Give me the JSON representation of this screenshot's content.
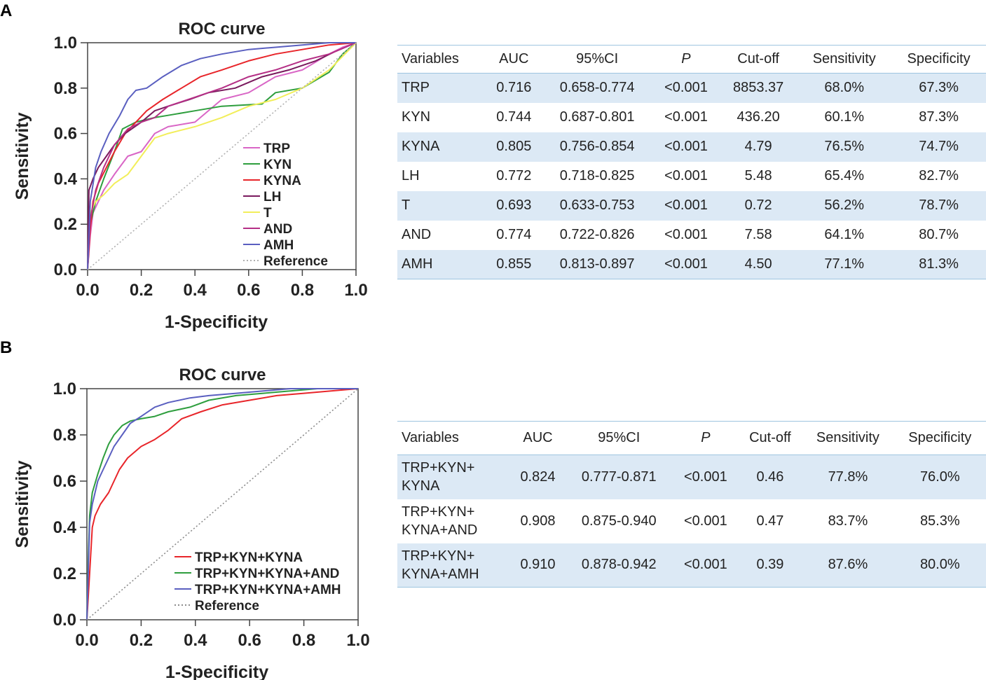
{
  "panels": {
    "A": {
      "label": "A",
      "chart_data": {
        "type": "line",
        "title": "ROC curve",
        "xlabel": "1-Specificity",
        "ylabel": "Sensitivity",
        "xlim": [
          0,
          1
        ],
        "ylim": [
          0,
          1
        ],
        "xticks": [
          "0.0",
          "0.2",
          "0.4",
          "0.6",
          "0.8",
          "1.0"
        ],
        "yticks": [
          "0.0",
          "0.2",
          "0.4",
          "0.6",
          "0.8",
          "1.0"
        ],
        "legend_position": "bottom-right",
        "series": [
          {
            "name": "TRP",
            "color": "#d966c6",
            "x": [
              0.0,
              0.01,
              0.02,
              0.04,
              0.06,
              0.1,
              0.15,
              0.2,
              0.25,
              0.3,
              0.4,
              0.5,
              0.6,
              0.7,
              0.8,
              0.9,
              0.95,
              1.0
            ],
            "y": [
              0.0,
              0.15,
              0.25,
              0.3,
              0.35,
              0.42,
              0.5,
              0.52,
              0.6,
              0.63,
              0.65,
              0.75,
              0.78,
              0.85,
              0.88,
              0.95,
              0.98,
              1.0
            ]
          },
          {
            "name": "KYN",
            "color": "#2e9e3e",
            "x": [
              0.0,
              0.01,
              0.03,
              0.06,
              0.1,
              0.13,
              0.18,
              0.25,
              0.3,
              0.4,
              0.5,
              0.65,
              0.7,
              0.8,
              0.9,
              0.95,
              1.0
            ],
            "y": [
              0.0,
              0.2,
              0.3,
              0.4,
              0.52,
              0.62,
              0.65,
              0.67,
              0.68,
              0.7,
              0.72,
              0.73,
              0.78,
              0.8,
              0.87,
              0.95,
              1.0
            ]
          },
          {
            "name": "KYNA",
            "color": "#e8252a",
            "x": [
              0.0,
              0.01,
              0.02,
              0.04,
              0.07,
              0.1,
              0.14,
              0.18,
              0.22,
              0.28,
              0.35,
              0.42,
              0.5,
              0.6,
              0.7,
              0.8,
              0.9,
              1.0
            ],
            "y": [
              0.0,
              0.18,
              0.3,
              0.38,
              0.45,
              0.52,
              0.6,
              0.65,
              0.7,
              0.75,
              0.8,
              0.85,
              0.88,
              0.92,
              0.95,
              0.97,
              0.99,
              1.0
            ]
          },
          {
            "name": "LH",
            "color": "#7a1a5e",
            "x": [
              0.0,
              0.005,
              0.02,
              0.04,
              0.07,
              0.1,
              0.14,
              0.2,
              0.25,
              0.3,
              0.38,
              0.45,
              0.55,
              0.65,
              0.75,
              0.85,
              0.92,
              1.0
            ],
            "y": [
              0.0,
              0.35,
              0.4,
              0.45,
              0.5,
              0.55,
              0.6,
              0.65,
              0.7,
              0.72,
              0.75,
              0.78,
              0.8,
              0.85,
              0.88,
              0.92,
              0.96,
              1.0
            ]
          },
          {
            "name": "T",
            "color": "#f2ee5a",
            "x": [
              0.0,
              0.01,
              0.03,
              0.06,
              0.1,
              0.15,
              0.2,
              0.25,
              0.3,
              0.4,
              0.5,
              0.6,
              0.7,
              0.8,
              0.9,
              1.0
            ],
            "y": [
              0.0,
              0.25,
              0.3,
              0.33,
              0.38,
              0.42,
              0.5,
              0.58,
              0.6,
              0.63,
              0.67,
              0.72,
              0.75,
              0.8,
              0.88,
              1.0
            ]
          },
          {
            "name": "AND",
            "color": "#b52f86",
            "x": [
              0.0,
              0.01,
              0.03,
              0.06,
              0.1,
              0.15,
              0.2,
              0.25,
              0.3,
              0.4,
              0.5,
              0.6,
              0.7,
              0.8,
              0.9,
              1.0
            ],
            "y": [
              0.0,
              0.22,
              0.35,
              0.45,
              0.55,
              0.62,
              0.65,
              0.67,
              0.72,
              0.76,
              0.8,
              0.85,
              0.88,
              0.92,
              0.95,
              1.0
            ]
          },
          {
            "name": "AMH",
            "color": "#5a5fc0",
            "x": [
              0.0,
              0.01,
              0.03,
              0.05,
              0.08,
              0.12,
              0.15,
              0.18,
              0.22,
              0.28,
              0.35,
              0.42,
              0.5,
              0.6,
              0.7,
              0.8,
              0.9,
              1.0
            ],
            "y": [
              0.0,
              0.3,
              0.45,
              0.52,
              0.6,
              0.68,
              0.75,
              0.79,
              0.8,
              0.85,
              0.9,
              0.93,
              0.95,
              0.97,
              0.98,
              0.99,
              1.0,
              1.0
            ]
          },
          {
            "name": "Reference",
            "color": "#b0b0b0",
            "dashed": true,
            "x": [
              0,
              1
            ],
            "y": [
              0,
              1
            ]
          }
        ]
      },
      "table": {
        "headers": [
          "Variables",
          "AUC",
          "95%CI",
          "P",
          "Cut-off",
          "Sensitivity",
          "Specificity"
        ],
        "rows": [
          [
            "TRP",
            "0.716",
            "0.658-0.774",
            "<0.001",
            "8853.37",
            "68.0%",
            "67.3%"
          ],
          [
            "KYN",
            "0.744",
            "0.687-0.801",
            "<0.001",
            "436.20",
            "60.1%",
            "87.3%"
          ],
          [
            "KYNA",
            "0.805",
            "0.756-0.854",
            "<0.001",
            "4.79",
            "76.5%",
            "74.7%"
          ],
          [
            "LH",
            "0.772",
            "0.718-0.825",
            "<0.001",
            "5.48",
            "65.4%",
            "82.7%"
          ],
          [
            "T",
            "0.693",
            "0.633-0.753",
            "<0.001",
            "0.72",
            "56.2%",
            "78.7%"
          ],
          [
            "AND",
            "0.774",
            "0.722-0.826",
            "<0.001",
            "7.58",
            "64.1%",
            "80.7%"
          ],
          [
            "AMH",
            "0.855",
            "0.813-0.897",
            "<0.001",
            "4.50",
            "77.1%",
            "81.3%"
          ]
        ]
      }
    },
    "B": {
      "label": "B",
      "chart_data": {
        "type": "line",
        "title": "ROC curve",
        "xlabel": "1-Specificity",
        "ylabel": "Sensitivity",
        "xlim": [
          0,
          1
        ],
        "ylim": [
          0,
          1
        ],
        "xticks": [
          "0.0",
          "0.2",
          "0.4",
          "0.6",
          "0.8",
          "1.0"
        ],
        "yticks": [
          "0.0",
          "0.2",
          "0.4",
          "0.6",
          "0.8",
          "1.0"
        ],
        "legend_position": "bottom-right",
        "series": [
          {
            "name": "TRP+KYN+KYNA",
            "color": "#e8252a",
            "x": [
              0.0,
              0.01,
              0.02,
              0.03,
              0.05,
              0.08,
              0.1,
              0.12,
              0.15,
              0.2,
              0.25,
              0.3,
              0.35,
              0.42,
              0.5,
              0.6,
              0.7,
              0.8,
              0.9,
              1.0
            ],
            "y": [
              0.0,
              0.2,
              0.4,
              0.45,
              0.5,
              0.55,
              0.6,
              0.65,
              0.7,
              0.75,
              0.78,
              0.82,
              0.87,
              0.9,
              0.93,
              0.95,
              0.97,
              0.98,
              0.99,
              1.0
            ]
          },
          {
            "name": "TRP+KYN+KYNA+AND",
            "color": "#2e9e3e",
            "x": [
              0.0,
              0.005,
              0.01,
              0.02,
              0.04,
              0.06,
              0.08,
              0.1,
              0.13,
              0.16,
              0.2,
              0.25,
              0.3,
              0.38,
              0.45,
              0.55,
              0.65,
              0.75,
              0.85,
              0.95,
              1.0
            ],
            "y": [
              0.0,
              0.25,
              0.45,
              0.55,
              0.63,
              0.7,
              0.76,
              0.8,
              0.84,
              0.86,
              0.87,
              0.88,
              0.9,
              0.92,
              0.95,
              0.97,
              0.98,
              0.99,
              1.0,
              1.0,
              1.0
            ]
          },
          {
            "name": "TRP+KYN+KYNA+AMH",
            "color": "#5a5fc0",
            "x": [
              0.0,
              0.005,
              0.01,
              0.02,
              0.04,
              0.06,
              0.08,
              0.1,
              0.13,
              0.16,
              0.2,
              0.25,
              0.3,
              0.38,
              0.45,
              0.55,
              0.65,
              0.75,
              0.85,
              0.95,
              1.0
            ],
            "y": [
              0.0,
              0.2,
              0.42,
              0.5,
              0.6,
              0.65,
              0.7,
              0.75,
              0.8,
              0.85,
              0.88,
              0.92,
              0.94,
              0.96,
              0.97,
              0.98,
              0.99,
              1.0,
              1.0,
              1.0,
              1.0
            ]
          },
          {
            "name": "Reference",
            "color": "#8c8c8c",
            "dashed": true,
            "x": [
              0,
              1
            ],
            "y": [
              0,
              1
            ]
          }
        ]
      },
      "table": {
        "headers": [
          "Variables",
          "AUC",
          "95%CI",
          "P",
          "Cut-off",
          "Sensitivity",
          "Specificity"
        ],
        "rows": [
          [
            "TRP+KYN+\nKYNA",
            "0.824",
            "0.777-0.871",
            "<0.001",
            "0.46",
            "77.8%",
            "76.0%"
          ],
          [
            "TRP+KYN+\nKYNA+AND",
            "0.908",
            "0.875-0.940",
            "<0.001",
            "0.47",
            "83.7%",
            "85.3%"
          ],
          [
            "TRP+KYN+\nKYNA+AMH",
            "0.910",
            "0.878-0.942",
            "<0.001",
            "0.39",
            "87.6%",
            "80.0%"
          ]
        ]
      }
    }
  }
}
